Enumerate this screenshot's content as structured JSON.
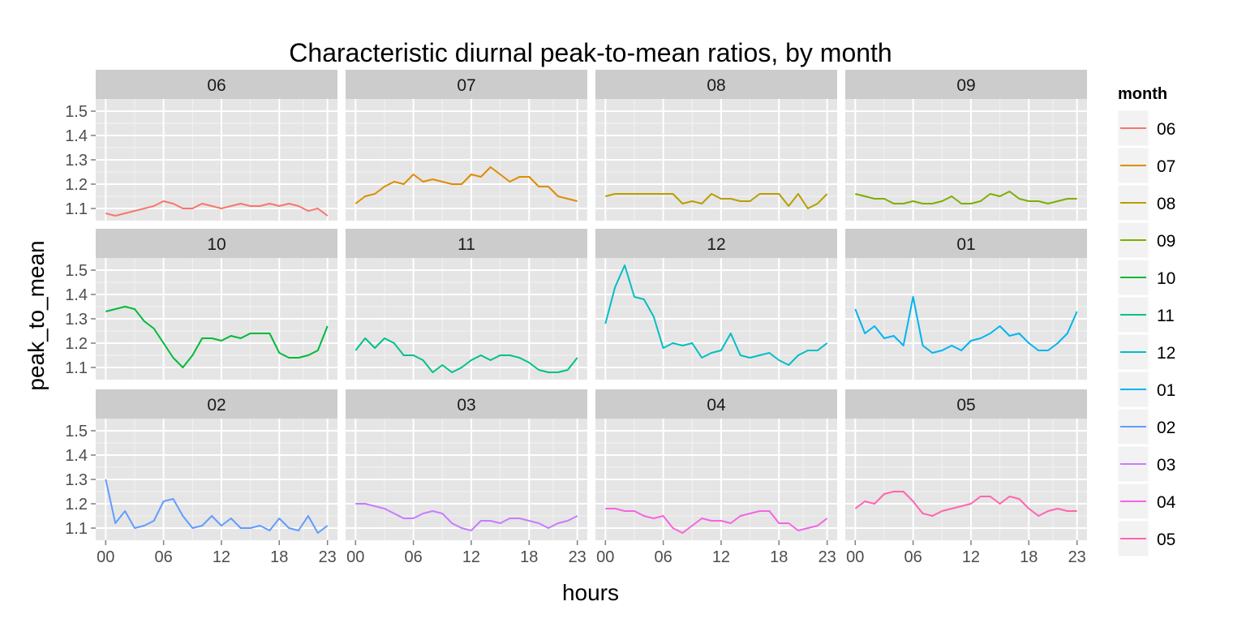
{
  "chart_data": {
    "type": "line",
    "title": "Characteristic diurnal peak-to-mean ratios, by month",
    "xlabel": "hours",
    "ylabel": "peak_to_mean",
    "x_tick_labels": [
      "00",
      "06",
      "12",
      "18",
      "23"
    ],
    "x_ticks": [
      0,
      6,
      12,
      18,
      23
    ],
    "xlim": [
      0,
      23
    ],
    "y_tick_labels": [
      "1.1",
      "1.2",
      "1.3",
      "1.4",
      "1.5"
    ],
    "y_ticks": [
      1.1,
      1.2,
      1.3,
      1.4,
      1.5
    ],
    "ylim": [
      1.05,
      1.55
    ],
    "legend_title": "month",
    "legend_position": "right",
    "grid": true,
    "background": "#e5e5e5",
    "strip_background": "#cccccc",
    "x": [
      0,
      1,
      2,
      3,
      4,
      5,
      6,
      7,
      8,
      9,
      10,
      11,
      12,
      13,
      14,
      15,
      16,
      17,
      18,
      19,
      20,
      21,
      22,
      23
    ],
    "series": [
      {
        "name": "06",
        "color": "#F8766D",
        "values": [
          1.08,
          1.07,
          1.08,
          1.09,
          1.1,
          1.11,
          1.13,
          1.12,
          1.1,
          1.1,
          1.12,
          1.11,
          1.1,
          1.11,
          1.12,
          1.11,
          1.11,
          1.12,
          1.11,
          1.12,
          1.11,
          1.09,
          1.1,
          1.07
        ]
      },
      {
        "name": "07",
        "color": "#DE8C00",
        "values": [
          1.12,
          1.15,
          1.16,
          1.19,
          1.21,
          1.2,
          1.24,
          1.21,
          1.22,
          1.21,
          1.2,
          1.2,
          1.24,
          1.23,
          1.27,
          1.24,
          1.21,
          1.23,
          1.23,
          1.19,
          1.19,
          1.15,
          1.14,
          1.13
        ]
      },
      {
        "name": "08",
        "color": "#B79F00",
        "values": [
          1.15,
          1.16,
          1.16,
          1.16,
          1.16,
          1.16,
          1.16,
          1.16,
          1.12,
          1.13,
          1.12,
          1.16,
          1.14,
          1.14,
          1.13,
          1.13,
          1.16,
          1.16,
          1.16,
          1.11,
          1.16,
          1.1,
          1.12,
          1.16
        ]
      },
      {
        "name": "09",
        "color": "#7CAE00",
        "values": [
          1.16,
          1.15,
          1.14,
          1.14,
          1.12,
          1.12,
          1.13,
          1.12,
          1.12,
          1.13,
          1.15,
          1.12,
          1.12,
          1.13,
          1.16,
          1.15,
          1.17,
          1.14,
          1.13,
          1.13,
          1.12,
          1.13,
          1.14,
          1.14
        ]
      },
      {
        "name": "10",
        "color": "#00BA38",
        "values": [
          1.33,
          1.34,
          1.35,
          1.34,
          1.29,
          1.26,
          1.2,
          1.14,
          1.1,
          1.15,
          1.22,
          1.22,
          1.21,
          1.23,
          1.22,
          1.24,
          1.24,
          1.24,
          1.16,
          1.14,
          1.14,
          1.15,
          1.17,
          1.27
        ]
      },
      {
        "name": "11",
        "color": "#00C08B",
        "values": [
          1.17,
          1.22,
          1.18,
          1.22,
          1.2,
          1.15,
          1.15,
          1.13,
          1.08,
          1.11,
          1.08,
          1.1,
          1.13,
          1.15,
          1.13,
          1.15,
          1.15,
          1.14,
          1.12,
          1.09,
          1.08,
          1.08,
          1.09,
          1.14
        ]
      },
      {
        "name": "12",
        "color": "#00BFC4",
        "values": [
          1.28,
          1.43,
          1.52,
          1.39,
          1.38,
          1.31,
          1.18,
          1.2,
          1.19,
          1.2,
          1.14,
          1.16,
          1.17,
          1.24,
          1.15,
          1.14,
          1.15,
          1.16,
          1.13,
          1.11,
          1.15,
          1.17,
          1.17,
          1.2
        ]
      },
      {
        "name": "01",
        "color": "#00B4F0",
        "values": [
          1.34,
          1.24,
          1.27,
          1.22,
          1.23,
          1.19,
          1.39,
          1.19,
          1.16,
          1.17,
          1.19,
          1.17,
          1.21,
          1.22,
          1.24,
          1.27,
          1.23,
          1.24,
          1.2,
          1.17,
          1.17,
          1.2,
          1.24,
          1.33
        ]
      },
      {
        "name": "02",
        "color": "#619CFF",
        "values": [
          1.3,
          1.12,
          1.17,
          1.1,
          1.11,
          1.13,
          1.21,
          1.22,
          1.15,
          1.1,
          1.11,
          1.15,
          1.11,
          1.14,
          1.1,
          1.1,
          1.11,
          1.09,
          1.14,
          1.1,
          1.09,
          1.15,
          1.08,
          1.11
        ]
      },
      {
        "name": "03",
        "color": "#C77CFF",
        "values": [
          1.2,
          1.2,
          1.19,
          1.18,
          1.16,
          1.14,
          1.14,
          1.16,
          1.17,
          1.16,
          1.12,
          1.1,
          1.09,
          1.13,
          1.13,
          1.12,
          1.14,
          1.14,
          1.13,
          1.12,
          1.1,
          1.12,
          1.13,
          1.15
        ]
      },
      {
        "name": "04",
        "color": "#F564E3",
        "values": [
          1.18,
          1.18,
          1.17,
          1.17,
          1.15,
          1.14,
          1.15,
          1.1,
          1.08,
          1.11,
          1.14,
          1.13,
          1.13,
          1.12,
          1.15,
          1.16,
          1.17,
          1.17,
          1.12,
          1.12,
          1.09,
          1.1,
          1.11,
          1.14
        ]
      },
      {
        "name": "05",
        "color": "#FF64B0",
        "values": [
          1.18,
          1.21,
          1.2,
          1.24,
          1.25,
          1.25,
          1.21,
          1.16,
          1.15,
          1.17,
          1.18,
          1.19,
          1.2,
          1.23,
          1.23,
          1.2,
          1.23,
          1.22,
          1.18,
          1.15,
          1.17,
          1.18,
          1.17,
          1.17
        ]
      }
    ]
  }
}
